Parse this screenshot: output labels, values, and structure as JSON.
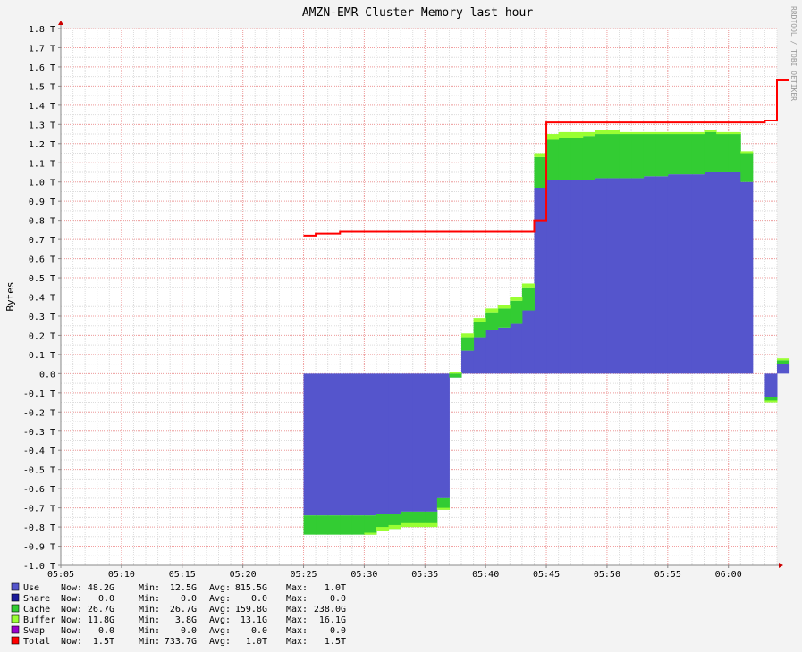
{
  "chart_data": {
    "type": "area",
    "title": "AMZN-EMR Cluster Memory last hour",
    "ylabel": "Bytes",
    "watermark": "RRDTOOL / TOBI OETIKER",
    "ylim": [
      -1.0,
      1.8
    ],
    "yticks": [
      {
        "value": 1.8,
        "label": "1.8 T"
      },
      {
        "value": 1.7,
        "label": "1.7 T"
      },
      {
        "value": 1.6,
        "label": "1.6 T"
      },
      {
        "value": 1.5,
        "label": "1.5 T"
      },
      {
        "value": 1.4,
        "label": "1.4 T"
      },
      {
        "value": 1.3,
        "label": "1.3 T"
      },
      {
        "value": 1.2,
        "label": "1.2 T"
      },
      {
        "value": 1.1,
        "label": "1.1 T"
      },
      {
        "value": 1.0,
        "label": "1.0 T"
      },
      {
        "value": 0.9,
        "label": "0.9 T"
      },
      {
        "value": 0.8,
        "label": "0.8 T"
      },
      {
        "value": 0.7,
        "label": "0.7 T"
      },
      {
        "value": 0.6,
        "label": "0.6 T"
      },
      {
        "value": 0.5,
        "label": "0.5 T"
      },
      {
        "value": 0.4,
        "label": "0.4 T"
      },
      {
        "value": 0.3,
        "label": "0.3 T"
      },
      {
        "value": 0.2,
        "label": "0.2 T"
      },
      {
        "value": 0.1,
        "label": "0.1 T"
      },
      {
        "value": 0.0,
        "label": "0.0"
      },
      {
        "value": -0.1,
        "label": "-0.1 T"
      },
      {
        "value": -0.2,
        "label": "-0.2 T"
      },
      {
        "value": -0.3,
        "label": "-0.3 T"
      },
      {
        "value": -0.4,
        "label": "-0.4 T"
      },
      {
        "value": -0.5,
        "label": "-0.5 T"
      },
      {
        "value": -0.6,
        "label": "-0.6 T"
      },
      {
        "value": -0.7,
        "label": "-0.7 T"
      },
      {
        "value": -0.8,
        "label": "-0.8 T"
      },
      {
        "value": -0.9,
        "label": "-0.9 T"
      },
      {
        "value": -1.0,
        "label": "-1.0 T"
      }
    ],
    "xlim": [
      "05:05",
      "06:04"
    ],
    "xticks": [
      "05:05",
      "05:10",
      "05:15",
      "05:20",
      "05:25",
      "05:30",
      "05:35",
      "05:40",
      "05:45",
      "05:50",
      "05:55",
      "06:00"
    ],
    "x": [
      "05:25",
      "05:26",
      "05:27",
      "05:28",
      "05:29",
      "05:30",
      "05:31",
      "05:32",
      "05:33",
      "05:34",
      "05:35",
      "05:36",
      "05:37",
      "05:38",
      "05:39",
      "05:40",
      "05:41",
      "05:42",
      "05:43",
      "05:44",
      "05:45",
      "05:46",
      "05:47",
      "05:48",
      "05:49",
      "05:50",
      "05:51",
      "05:52",
      "05:53",
      "05:54",
      "05:55",
      "05:56",
      "05:57",
      "05:58",
      "05:59",
      "06:00",
      "06:01",
      "06:02",
      "06:03",
      "06:04"
    ],
    "series": [
      {
        "name": "Use",
        "color": "#5555cc",
        "values": [
          -0.74,
          -0.74,
          -0.74,
          -0.74,
          -0.74,
          -0.74,
          -0.73,
          -0.73,
          -0.72,
          -0.72,
          -0.72,
          -0.65,
          -0.02,
          0.12,
          0.19,
          0.23,
          0.24,
          0.26,
          0.33,
          0.97,
          1.01,
          1.01,
          1.01,
          1.01,
          1.02,
          1.02,
          1.02,
          1.02,
          1.03,
          1.03,
          1.04,
          1.04,
          1.04,
          1.05,
          1.05,
          1.05,
          1.0,
          0.0,
          -0.12,
          0.05
        ]
      },
      {
        "name": "Share",
        "color": "#1a1a99",
        "values": [
          0,
          0,
          0,
          0,
          0,
          0,
          0,
          0,
          0,
          0,
          0,
          0,
          0,
          0,
          0,
          0,
          0,
          0,
          0,
          0,
          0,
          0,
          0,
          0,
          0,
          0,
          0,
          0,
          0,
          0,
          0,
          0,
          0,
          0,
          0,
          0,
          0,
          0,
          0,
          0
        ]
      },
      {
        "name": "Cache",
        "color": "#33cc33",
        "values": [
          -0.1,
          -0.1,
          -0.1,
          -0.1,
          -0.1,
          -0.1,
          -0.09,
          -0.08,
          -0.08,
          -0.08,
          -0.08,
          -0.06,
          0.02,
          0.07,
          0.08,
          0.09,
          0.1,
          0.12,
          0.12,
          0.16,
          0.21,
          0.22,
          0.22,
          0.23,
          0.23,
          0.23,
          0.23,
          0.23,
          0.22,
          0.22,
          0.21,
          0.21,
          0.21,
          0.21,
          0.2,
          0.2,
          0.15,
          0.0,
          -0.03,
          0.02
        ]
      },
      {
        "name": "Buffer",
        "color": "#99ff33",
        "values": [
          0,
          0,
          0,
          0,
          0,
          0.01,
          0.02,
          0.02,
          0.02,
          0.02,
          0.02,
          0.01,
          0.01,
          0.02,
          0.02,
          0.02,
          0.02,
          0.02,
          0.02,
          0.02,
          0.03,
          0.03,
          0.03,
          0.02,
          0.02,
          0.02,
          0.01,
          0.01,
          0.01,
          0.01,
          0.01,
          0.01,
          0.01,
          0.01,
          0.01,
          0.01,
          0.01,
          0.0,
          0.01,
          0.01
        ]
      },
      {
        "name": "Swap",
        "color": "#9900cc",
        "values": [
          0,
          0,
          0,
          0,
          0,
          0,
          0,
          0,
          0,
          0,
          0,
          0,
          0,
          0,
          0,
          0,
          0,
          0,
          0,
          0,
          0,
          0,
          0,
          0,
          0,
          0,
          0,
          0,
          0,
          0,
          0,
          0,
          0,
          0,
          0,
          0,
          0,
          0,
          0,
          0
        ]
      },
      {
        "name": "Total",
        "color": "#ff0000",
        "type": "line",
        "values": [
          0.72,
          0.73,
          0.73,
          0.74,
          0.74,
          0.74,
          0.74,
          0.74,
          0.74,
          0.74,
          0.74,
          0.74,
          0.74,
          0.74,
          0.74,
          0.74,
          0.74,
          0.74,
          0.74,
          0.8,
          1.31,
          1.31,
          1.31,
          1.31,
          1.31,
          1.31,
          1.31,
          1.31,
          1.31,
          1.31,
          1.31,
          1.31,
          1.31,
          1.31,
          1.31,
          1.31,
          1.31,
          1.31,
          1.32,
          1.53
        ]
      }
    ],
    "legend": [
      {
        "name": "Use",
        "color": "#5555cc",
        "now": "48.2G",
        "min": "12.5G",
        "avg": "815.5G",
        "max": "1.0T"
      },
      {
        "name": "Share",
        "color": "#1a1a99",
        "now": "0.0",
        "min": "0.0",
        "avg": "0.0",
        "max": "0.0"
      },
      {
        "name": "Cache",
        "color": "#33cc33",
        "now": "26.7G",
        "min": "26.7G",
        "avg": "159.8G",
        "max": "238.0G"
      },
      {
        "name": "Buffer",
        "color": "#99ff33",
        "now": "11.8G",
        "min": "3.8G",
        "avg": "13.1G",
        "max": "16.1G"
      },
      {
        "name": "Swap",
        "color": "#9900cc",
        "now": "0.0",
        "min": "0.0",
        "avg": "0.0",
        "max": "0.0"
      },
      {
        "name": "Total",
        "color": "#ff0000",
        "now": "1.5T",
        "min": "733.7G",
        "avg": "1.0T",
        "max": "1.5T"
      }
    ],
    "legend_labels": {
      "now": "Now:",
      "min": "Min:",
      "avg": "Avg:",
      "max": "Max:"
    },
    "legend_placement": "bottom-left",
    "grid": true
  }
}
